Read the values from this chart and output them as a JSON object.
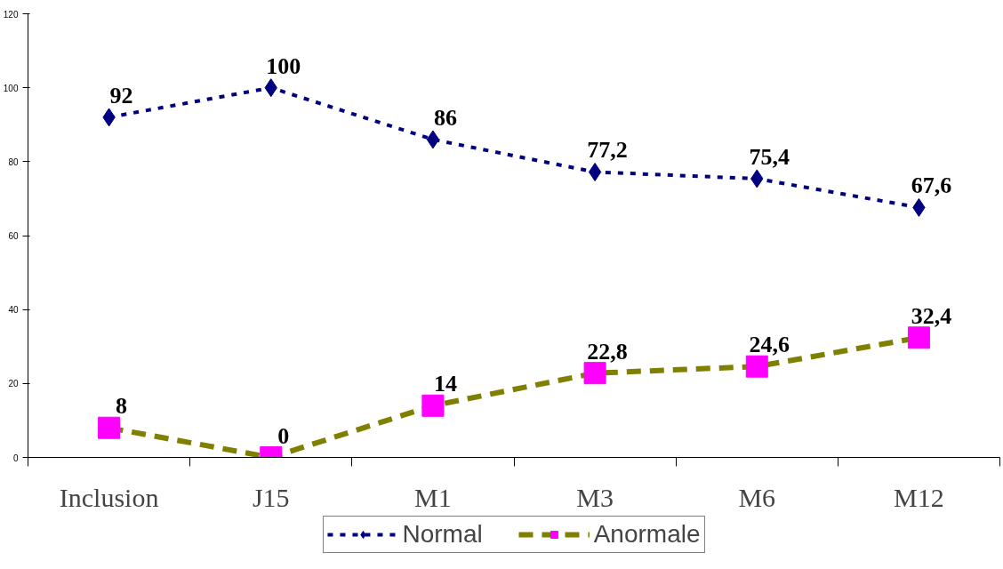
{
  "chart_data": {
    "type": "line",
    "categories": [
      "Inclusion",
      "J15",
      "M1",
      "M3",
      "M6",
      "M12"
    ],
    "series": [
      {
        "name": "Normal",
        "color": "#000080",
        "values": [
          92,
          100,
          86,
          77.2,
          75.4,
          67.6
        ],
        "marker": "diamond",
        "line_style": "dotted"
      },
      {
        "name": "Anormale",
        "color": "#808000",
        "colors": [
          "#ff00ff",
          "#ff00ff",
          "#ff00ff",
          "#ff00ff",
          "#ff00ff",
          "#ff00ff"
        ],
        "values": [
          8,
          0,
          14,
          22.8,
          24.6,
          32.4
        ],
        "marker": "square",
        "line_style": "dashed"
      }
    ],
    "value_labels": [
      [
        "92",
        "100",
        "86",
        "77,2",
        "75,4",
        "67,6"
      ],
      [
        "8",
        "0",
        "14",
        "22,8",
        "24,6",
        "32,4"
      ]
    ],
    "ylim": [
      0,
      120
    ],
    "yticks": [
      0,
      20,
      40,
      60,
      80,
      100,
      120
    ],
    "grid": false,
    "legend": "bottom"
  }
}
